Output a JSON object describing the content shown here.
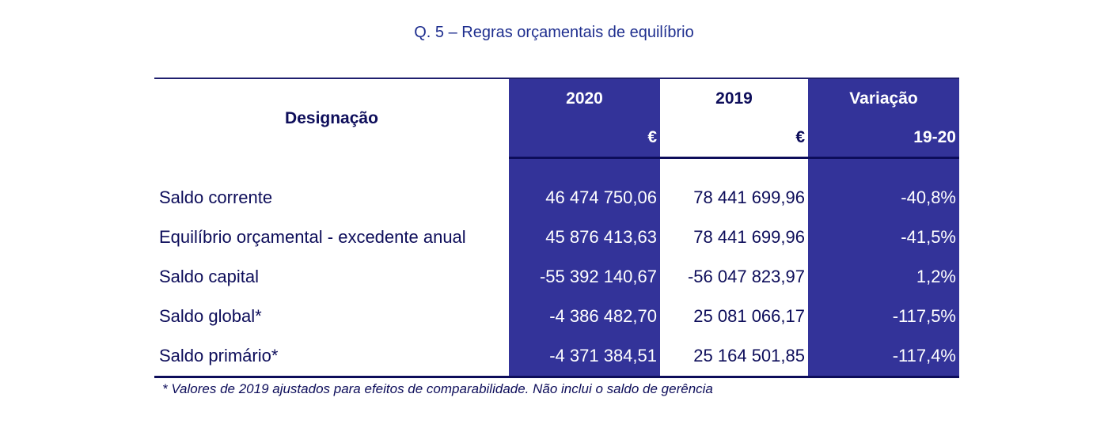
{
  "title": "Q. 5 – Regras orçamentais de equilíbrio",
  "header": {
    "designacao": "Designação",
    "col_2020": "2020",
    "col_2019": "2019",
    "col_variacao": "Variação",
    "unit_2020": "€",
    "unit_2019": "€",
    "variacao_period": "19-20"
  },
  "rows": [
    {
      "label": "Saldo corrente",
      "v2020": "46 474 750,06",
      "v2019": "78 441 699,96",
      "var": "-40,8%"
    },
    {
      "label": "Equilíbrio orçamental - excedente anual",
      "v2020": "45 876 413,63",
      "v2019": "78 441 699,96",
      "var": "-41,5%"
    },
    {
      "label": "Saldo capital",
      "v2020": "-55 392 140,67",
      "v2019": "-56 047 823,97",
      "var": "1,2%"
    },
    {
      "label": "Saldo global*",
      "v2020": "-4 386 482,70",
      "v2019": "25 081 066,17",
      "var": "-117,5%"
    },
    {
      "label": "Saldo primário*",
      "v2020": "-4 371 384,51",
      "v2019": "25 164 501,85",
      "var": "-117,4%"
    }
  ],
  "footnote": "* Valores de 2019 ajustados para efeitos de comparabilidade. Não inclui o saldo de gerência",
  "colors": {
    "shade": "#333399",
    "text": "#0d0d5a",
    "title": "#1f2f8f"
  }
}
